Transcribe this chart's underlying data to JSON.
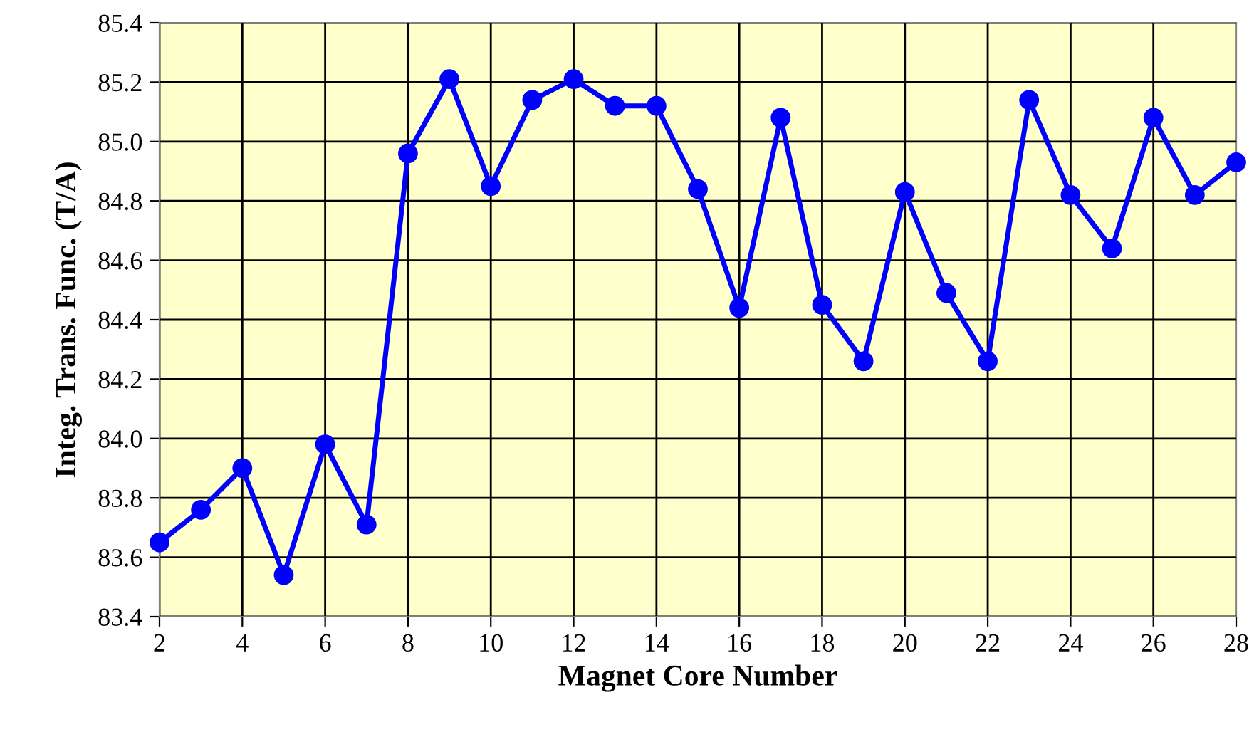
{
  "chart_data": {
    "type": "line",
    "xlabel": "Magnet Core Number",
    "ylabel": "Integ. Trans. Func. (T/A)",
    "x": [
      2,
      3,
      4,
      5,
      6,
      7,
      8,
      9,
      10,
      11,
      12,
      13,
      14,
      15,
      16,
      17,
      18,
      19,
      20,
      21,
      22,
      23,
      24,
      25,
      26,
      27,
      28
    ],
    "series": [
      {
        "color": "#0000ff",
        "values": [
          83.65,
          83.76,
          83.9,
          83.54,
          83.98,
          83.71,
          84.96,
          85.21,
          84.85,
          85.14,
          85.21,
          85.12,
          85.12,
          84.84,
          84.44,
          85.08,
          84.45,
          84.26,
          84.83,
          84.49,
          84.26,
          85.14,
          84.82,
          84.64,
          85.08,
          84.82,
          84.93
        ]
      }
    ],
    "xlim": [
      2,
      28
    ],
    "xticks": [
      2,
      4,
      6,
      8,
      10,
      12,
      14,
      16,
      18,
      20,
      22,
      24,
      26,
      28
    ],
    "ylim": [
      83.4,
      85.4
    ],
    "yticks": [
      {
        "value": 83.4,
        "label": "83.4"
      },
      {
        "value": 83.6,
        "label": "83.6"
      },
      {
        "value": 83.8,
        "label": "83.8"
      },
      {
        "value": 84.0,
        "label": "84.0"
      },
      {
        "value": 84.2,
        "label": "84.2"
      },
      {
        "value": 84.4,
        "label": "84.4"
      },
      {
        "value": 84.6,
        "label": "84.6"
      },
      {
        "value": 84.8,
        "label": "84.8"
      },
      {
        "value": 85.0,
        "label": "85.0"
      },
      {
        "value": 85.2,
        "label": "85.2"
      },
      {
        "value": 85.4,
        "label": "85.4"
      }
    ],
    "grid": true,
    "marker": "circle",
    "line_style": "solid",
    "legend": false
  }
}
